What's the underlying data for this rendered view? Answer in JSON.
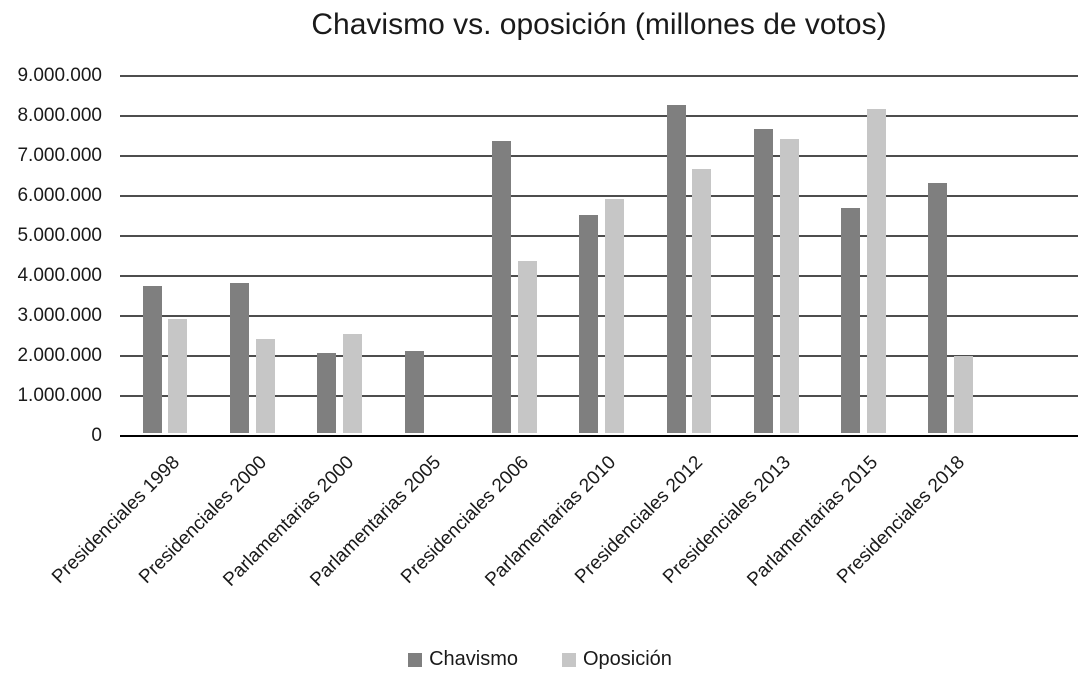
{
  "chart_data": {
    "type": "bar",
    "title": "Chavismo vs. oposición (millones de votos)",
    "categories": [
      "Presidenciales 1998",
      "Presidenciales 2000",
      "Parlamentarias 2000",
      "Parlamentarias 2005",
      "Presidenciales 2006",
      "Parlamentarias 2010",
      "Presidenciales 2012",
      "Presidenciales 2013",
      "Parlamentarias 2015",
      "Presidenciales 2018"
    ],
    "series": [
      {
        "name": "Chavismo",
        "color": "#7f7f7f",
        "values": [
          3670000,
          3760000,
          2000000,
          2050000,
          7310000,
          5450000,
          8190000,
          7590000,
          5620000,
          6250000
        ]
      },
      {
        "name": "Oposición",
        "color": "#c6c6c6",
        "values": [
          2860000,
          2360000,
          2470000,
          0,
          4290000,
          5860000,
          6590000,
          7360000,
          8100000,
          1930000
        ]
      }
    ],
    "ylim": [
      0,
      9000000
    ],
    "y_ticks": [
      "9.000.000",
      "8.000.000",
      "7.000.000",
      "6.000.000",
      "5.000.000",
      "4.000.000",
      "3.000.000",
      "2.000.000",
      "1.000.000",
      "0"
    ],
    "grid": "horizontal",
    "legend_position": "bottom"
  }
}
